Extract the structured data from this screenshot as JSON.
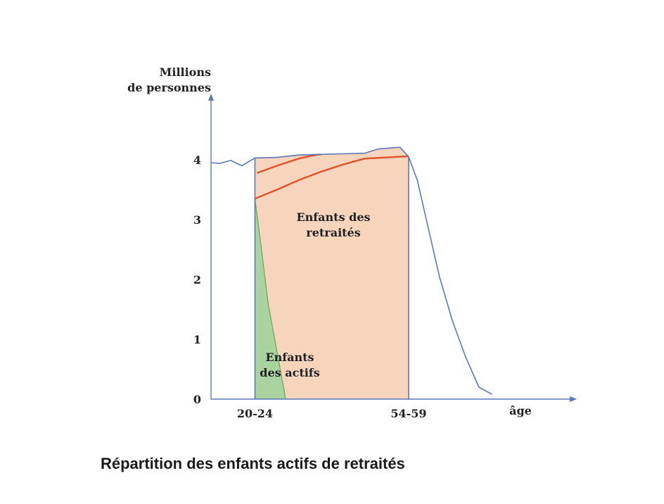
{
  "caption": "Répartition des enfants actifs de retraités",
  "chart_data": {
    "type": "area",
    "ylabel": [
      "Millions",
      "de personnes"
    ],
    "xlabel": "âge",
    "y_ticks": [
      0,
      1,
      2,
      3,
      4
    ],
    "x_tick_labels": [
      {
        "label": "20-24",
        "x": 20
      },
      {
        "label": "54-59",
        "x": 55
      }
    ],
    "xlim": [
      10,
      92
    ],
    "ylim": [
      0,
      5.3
    ],
    "population_curve": {
      "x": [
        10,
        12,
        14.5,
        17,
        20,
        25,
        30,
        35,
        40,
        45,
        48,
        53,
        55,
        57,
        59.5,
        62,
        65,
        68,
        71,
        74
      ],
      "y": [
        3.95,
        3.94,
        3.99,
        3.9,
        4.03,
        4.04,
        4.08,
        4.09,
        4.1,
        4.11,
        4.18,
        4.21,
        4.05,
        3.65,
        2.85,
        2.05,
        1.3,
        0.7,
        0.2,
        0.08
      ]
    },
    "children_of_retirees_upper_line": {
      "x": [
        20.5,
        25,
        30,
        33,
        35
      ],
      "y": [
        3.78,
        3.9,
        4.02,
        4.07,
        4.09
      ]
    },
    "children_of_retirees_lower_line": {
      "x": [
        20,
        25,
        30,
        35,
        40,
        45,
        55
      ],
      "y": [
        3.35,
        3.5,
        3.66,
        3.8,
        3.92,
        4.02,
        4.06
      ]
    },
    "children_of_workers_wedge": {
      "x": [
        20,
        21.5,
        23,
        25,
        27
      ],
      "y": [
        3.35,
        2.5,
        1.6,
        0.8,
        0
      ]
    },
    "labels": {
      "retirees": [
        "Enfants des",
        "retraités"
      ],
      "workers": [
        "Enfants",
        "des actifs"
      ]
    },
    "colors": {
      "curve": "#5b78b8",
      "axis": "#5b78b8",
      "red_line": "#e0502a",
      "retirees_fill": "#f7d5bd",
      "workers_fill": "#a9d39f",
      "workers_edge": "#6aa55c",
      "text": "#222222"
    }
  }
}
